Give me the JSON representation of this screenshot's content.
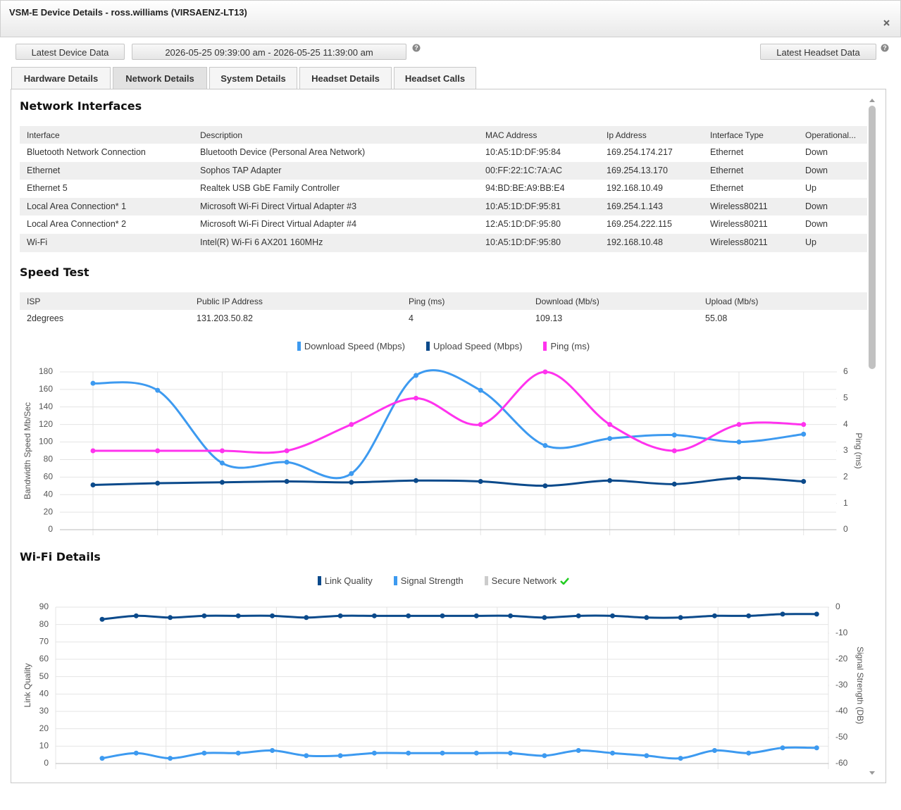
{
  "window": {
    "title": "VSM-E Device Details - ross.williams (VIRSAENZ-LT13)"
  },
  "toolbar": {
    "latest_device": "Latest Device Data",
    "range": "2026-05-25 09:39:00 am - 2026-05-25 11:39:00 am",
    "latest_headset": "Latest Headset Data"
  },
  "tabs": [
    "Hardware Details",
    "Network Details",
    "System Details",
    "Headset Details",
    "Headset Calls"
  ],
  "network": {
    "title": "Network Interfaces",
    "columns": [
      "Interface",
      "Description",
      "MAC Address",
      "Ip Address",
      "Interface Type",
      "Operational..."
    ],
    "rows": [
      [
        "Bluetooth Network Connection",
        "Bluetooth Device (Personal Area Network)",
        "10:A5:1D:DF:95:84",
        "169.254.174.217",
        "Ethernet",
        "Down"
      ],
      [
        "Ethernet",
        "Sophos TAP Adapter",
        "00:FF:22:1C:7A:AC",
        "169.254.13.170",
        "Ethernet",
        "Down"
      ],
      [
        "Ethernet 5",
        "Realtek USB GbE Family Controller",
        "94:BD:BE:A9:BB:E4",
        "192.168.10.49",
        "Ethernet",
        "Up"
      ],
      [
        "Local Area Connection* 1",
        "Microsoft Wi-Fi Direct Virtual Adapter #3",
        "10:A5:1D:DF:95:81",
        "169.254.1.143",
        "Wireless80211",
        "Down"
      ],
      [
        "Local Area Connection* 2",
        "Microsoft Wi-Fi Direct Virtual Adapter #4",
        "12:A5:1D:DF:95:80",
        "169.254.222.115",
        "Wireless80211",
        "Down"
      ],
      [
        "Wi-Fi",
        "Intel(R) Wi-Fi 6 AX201 160MHz",
        "10:A5:1D:DF:95:80",
        "192.168.10.48",
        "Wireless80211",
        "Up"
      ]
    ]
  },
  "speed": {
    "title": "Speed Test",
    "columns": [
      "ISP",
      "Public IP Address",
      "Ping (ms)",
      "Download (Mb/s)",
      "Upload (Mb/s)"
    ],
    "rows": [
      [
        "2degrees",
        "131.203.50.82",
        "4",
        "109.13",
        "55.08"
      ]
    ]
  },
  "speed_chart": {
    "type": "line",
    "categories": [
      null,
      null,
      null,
      null,
      null,
      null,
      null,
      null,
      null,
      null,
      null,
      null
    ],
    "ylabel": "Bandwidth Speed Mb/Sec",
    "y2label": "Ping (ms)",
    "ylim": [
      0,
      180
    ],
    "yticks": [
      0,
      20,
      40,
      60,
      80,
      100,
      120,
      140,
      160,
      180
    ],
    "y2lim": [
      0,
      6
    ],
    "y2ticks": [
      0,
      1,
      2,
      3,
      4,
      5,
      6
    ],
    "grid": true,
    "series": [
      {
        "name": "Download Speed (Mbps)",
        "color": "#3d9af0",
        "values": [
          167,
          159,
          76,
          77,
          64,
          176,
          159,
          96,
          104,
          108,
          100,
          109
        ]
      },
      {
        "name": "Upload Speed (Mbps)",
        "color": "#0b4a8b",
        "values": [
          51,
          53,
          54,
          55,
          54,
          56,
          55,
          50,
          56,
          52,
          59,
          55
        ]
      },
      {
        "name": "Ping (ms)",
        "color": "#ff33ee",
        "values": [
          3,
          3,
          3,
          3,
          4,
          5,
          4,
          6,
          4,
          3,
          4,
          4
        ],
        "axis": "y2"
      }
    ]
  },
  "wifi": {
    "title": "Wi-Fi Details"
  },
  "wifi_chart": {
    "type": "line",
    "categories": [
      null,
      null,
      null,
      null,
      null,
      null,
      null,
      null,
      null,
      null,
      null,
      null,
      null,
      null,
      null,
      null,
      null,
      null,
      null,
      null,
      null,
      null
    ],
    "ylabel": "Link Quality",
    "y2label": "Signal Strength (DB)",
    "ylim": [
      0,
      90
    ],
    "yticks": [
      0,
      10,
      20,
      30,
      40,
      50,
      60,
      70,
      80,
      90
    ],
    "y2lim": [
      -60,
      0
    ],
    "y2ticks": [
      -60,
      -50,
      -40,
      -30,
      -20,
      -10,
      0
    ],
    "grid": true,
    "series": [
      {
        "name": "Link Quality",
        "color": "#0b4a8b",
        "values": [
          83,
          85,
          84,
          85,
          85,
          85,
          84,
          85,
          85,
          85,
          85,
          85,
          85,
          84,
          85,
          85,
          84,
          84,
          85,
          85,
          86,
          86
        ]
      },
      {
        "name": "Signal Strength",
        "color": "#3d9af0",
        "values": [
          -58,
          -56,
          -58,
          -56,
          -56,
          -55,
          -57,
          -57,
          -56,
          -56,
          -56,
          -56,
          -56,
          -57,
          -55,
          -56,
          -57,
          -58,
          -55,
          -56,
          -54,
          -54
        ],
        "axis": "y2"
      }
    ],
    "legend_extra": {
      "name": "Secure Network",
      "color": "#cccccc"
    }
  }
}
